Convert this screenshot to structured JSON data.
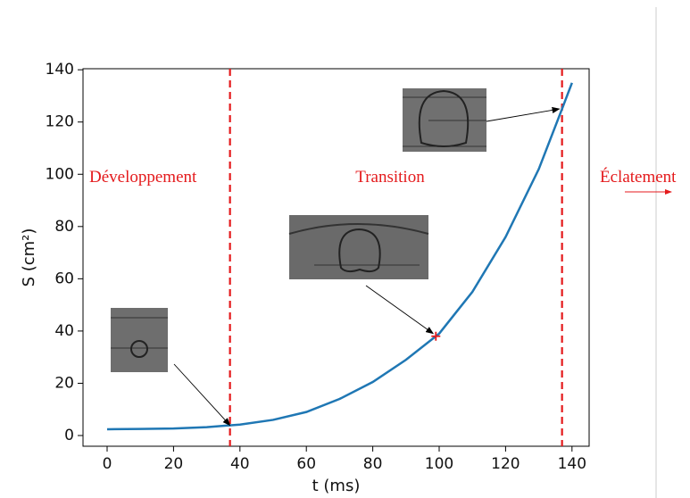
{
  "chart_data": {
    "type": "line",
    "x": [
      0,
      10,
      20,
      30,
      40,
      50,
      60,
      70,
      80,
      90,
      100,
      110,
      120,
      130,
      137,
      140
    ],
    "values": [
      2.4,
      2.5,
      2.7,
      3.2,
      4.2,
      6.0,
      9.0,
      14,
      20.5,
      29,
      39,
      55,
      76,
      102,
      125,
      135
    ],
    "color": "#1f77b4",
    "xlim": [
      -7.26,
      145.16
    ],
    "ylim": [
      -4.1,
      140.4
    ],
    "xticks": [
      0,
      20,
      40,
      60,
      80,
      100,
      120,
      140
    ],
    "yticks": [
      0,
      20,
      40,
      60,
      80,
      100,
      120,
      140
    ],
    "x_label": "t (ms)",
    "y_label": "S (cm²)",
    "vlines": [
      37,
      137
    ],
    "vline_color": "#e41a1c",
    "marker": {
      "x": 99,
      "y": 38,
      "color": "#e41a1c"
    },
    "annotations": [
      "Développement",
      "Transition",
      "Éclatement"
    ],
    "grid": false
  }
}
